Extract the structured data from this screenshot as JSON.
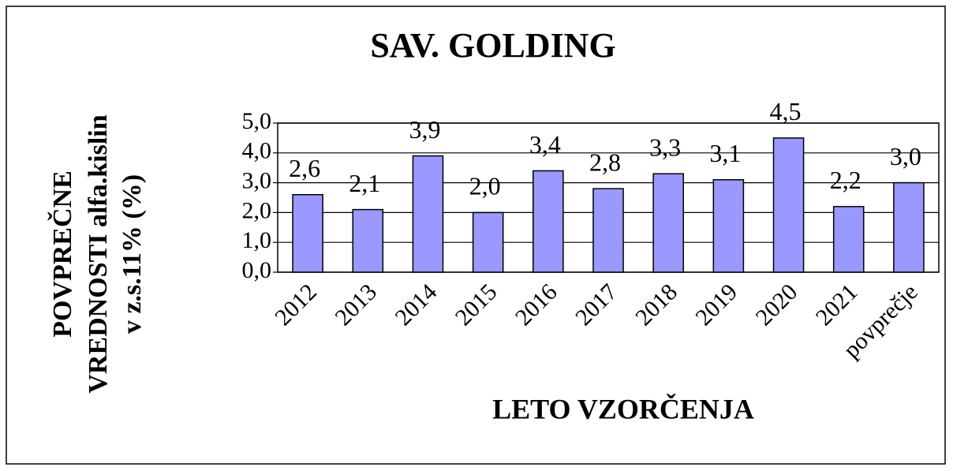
{
  "chart_data": {
    "type": "bar",
    "title": "SAV. GOLDING",
    "xlabel": "LETO VZORČENJA",
    "ylabel": [
      "POVPREČNE",
      "VREDNOSTI alfa.kislin",
      "v z.s.11% (%)"
    ],
    "categories": [
      "2012",
      "2013",
      "2014",
      "2015",
      "2016",
      "2017",
      "2018",
      "2019",
      "2020",
      "2021",
      "povprečje"
    ],
    "values": [
      2.6,
      2.1,
      3.9,
      2.0,
      3.4,
      2.8,
      3.3,
      3.1,
      4.5,
      2.2,
      3.0
    ],
    "value_labels": [
      "2,6",
      "2,1",
      "3,9",
      "2,0",
      "3,4",
      "2,8",
      "3,3",
      "3,1",
      "4,5",
      "2,2",
      "3,0"
    ],
    "color": "#9999ff",
    "ylim": [
      0,
      5
    ],
    "yticks": [
      {
        "value": 0,
        "label": "0,0"
      },
      {
        "value": 1,
        "label": "1,0"
      },
      {
        "value": 2,
        "label": "2,0"
      },
      {
        "value": 3,
        "label": "3,0"
      },
      {
        "value": 4,
        "label": "4,0"
      },
      {
        "value": 5,
        "label": "5,0"
      }
    ],
    "grid": true
  }
}
